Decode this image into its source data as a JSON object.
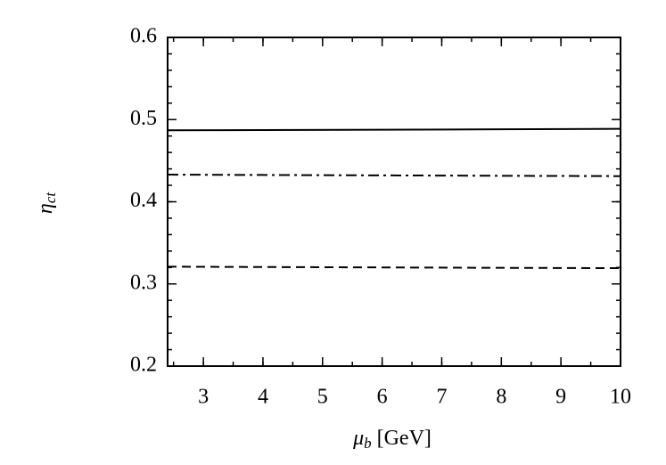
{
  "chart_data": {
    "type": "line",
    "xlabel": {
      "symbol": "μ",
      "subscript": "b",
      "unit": " [GeV]"
    },
    "ylabel": {
      "symbol": "η",
      "subscript": "ct"
    },
    "x": [
      2.4,
      4,
      6,
      8,
      10
    ],
    "series": [
      {
        "color": "#000000",
        "dash": "solid",
        "values": [
          0.487,
          0.4873,
          0.4877,
          0.4882,
          0.4887
        ]
      },
      {
        "color": "#000000",
        "dash": "dashdot",
        "values": [
          0.433,
          0.4326,
          0.4321,
          0.4316,
          0.4312
        ]
      },
      {
        "color": "#000000",
        "dash": "dashed",
        "values": [
          0.321,
          0.3206,
          0.3201,
          0.3196,
          0.3192
        ]
      }
    ],
    "xlim": [
      2.4,
      10
    ],
    "ylim": [
      0.2,
      0.6
    ],
    "xticks": [
      3,
      4,
      5,
      6,
      7,
      8,
      9,
      10
    ],
    "yticks": [
      0.2,
      0.3,
      0.4,
      0.5,
      0.6
    ],
    "x_minor_step": 0.5,
    "y_minor_step": 0.02,
    "grid": false
  }
}
